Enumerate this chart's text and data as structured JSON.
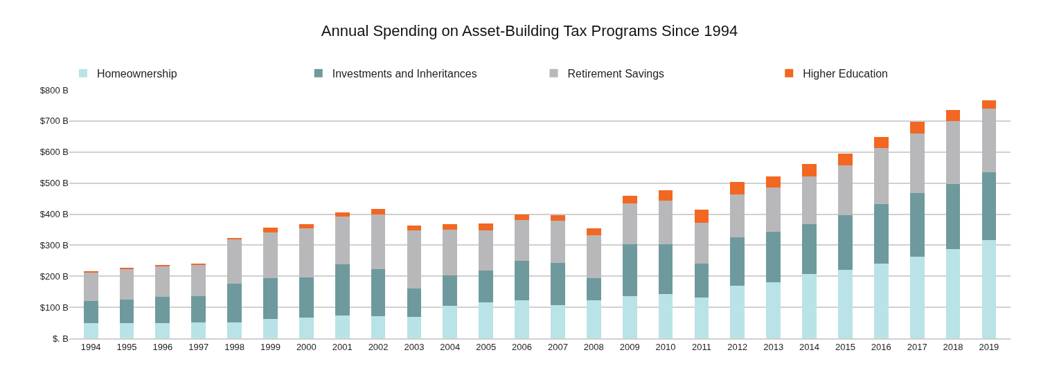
{
  "chart_data": {
    "type": "bar",
    "title": "Annual Spending on Asset-Building Tax Programs Since 1994",
    "categories": [
      "1994",
      "1995",
      "1996",
      "1997",
      "1998",
      "1999",
      "2000",
      "2001",
      "2002",
      "2003",
      "2004",
      "2005",
      "2006",
      "2007",
      "2008",
      "2009",
      "2010",
      "2011",
      "2012",
      "2013",
      "2014",
      "2015",
      "2016",
      "2017",
      "2018",
      "2019"
    ],
    "stacked": true,
    "series": [
      {
        "name": "Homeownership",
        "color": "#b9e3e6",
        "values": [
          48,
          48,
          48,
          52,
          52,
          62,
          67,
          73,
          71,
          70,
          104,
          115,
          123,
          108,
          123,
          137,
          143,
          131,
          170,
          181,
          207,
          221,
          240,
          262,
          288,
          316
        ]
      },
      {
        "name": "Investments and Inheritances",
        "color": "#6e9a9d",
        "values": [
          72,
          77,
          85,
          85,
          125,
          131,
          130,
          165,
          151,
          90,
          98,
          103,
          127,
          134,
          70,
          167,
          161,
          109,
          156,
          162,
          160,
          175,
          192,
          205,
          210,
          219
        ]
      },
      {
        "name": "Retirement Savings",
        "color": "#b8b8ba",
        "values": [
          92,
          98,
          99,
          100,
          141,
          147,
          157,
          154,
          178,
          187,
          148,
          130,
          130,
          136,
          140,
          131,
          139,
          132,
          138,
          142,
          155,
          161,
          180,
          193,
          202,
          205
        ]
      },
      {
        "name": "Higher Education",
        "color": "#f26722",
        "values": [
          4,
          4,
          5,
          3,
          5,
          16,
          14,
          14,
          16,
          17,
          17,
          21,
          20,
          19,
          21,
          24,
          33,
          43,
          39,
          36,
          39,
          38,
          36,
          37,
          36,
          26
        ]
      }
    ],
    "ylim": [
      0,
      800
    ],
    "yticks": [
      {
        "value": 0,
        "label": "$. B"
      },
      {
        "value": 100,
        "label": "$100 B"
      },
      {
        "value": 200,
        "label": "$200 B"
      },
      {
        "value": 300,
        "label": "$300 B"
      },
      {
        "value": 400,
        "label": "$400 B"
      },
      {
        "value": 500,
        "label": "$500 B"
      },
      {
        "value": 600,
        "label": "$600 B"
      },
      {
        "value": 700,
        "label": "$700 B"
      },
      {
        "value": 800,
        "label": "$800 B"
      }
    ],
    "grid": "y",
    "legend": "top"
  }
}
